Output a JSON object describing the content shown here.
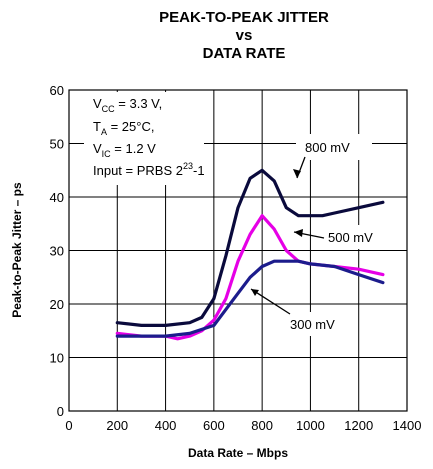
{
  "chart_data": {
    "type": "line",
    "title_lines": [
      "PEAK-TO-PEAK JITTER",
      "vs",
      "DATA RATE"
    ],
    "xlabel": "Data Rate – Mbps",
    "ylabel": "Peak-to-Peak Jitter – ps",
    "xlim": [
      0,
      1400
    ],
    "ylim": [
      0,
      60
    ],
    "xticks": [
      0,
      200,
      400,
      600,
      800,
      1000,
      1200,
      1400
    ],
    "yticks": [
      0,
      10,
      20,
      30,
      40,
      50,
      60
    ],
    "grid": true,
    "conditions": [
      {
        "base": "V",
        "sub": "CC",
        "rest": " = 3.3 V,"
      },
      {
        "base": "T",
        "sub": "A",
        "rest": " = 25°C,"
      },
      {
        "base": "V",
        "sub": "IC",
        "rest": " = 1.2 V"
      },
      {
        "base": "Input = PRBS 2",
        "sup": "23",
        "rest": "-1"
      }
    ],
    "series": [
      {
        "name": "800 mV",
        "color": "#0a0a3c",
        "x": [
          200,
          300,
          400,
          500,
          550,
          600,
          650,
          700,
          750,
          800,
          850,
          900,
          950,
          1000,
          1050,
          1100,
          1200,
          1300
        ],
        "y": [
          16.5,
          16,
          16,
          16.5,
          17.5,
          21,
          29,
          38,
          43.5,
          45,
          43,
          38,
          36.5,
          36.5,
          36.5,
          37,
          38,
          39
        ]
      },
      {
        "name": "500 mV",
        "color": "#e600e6",
        "x": [
          200,
          300,
          400,
          450,
          500,
          550,
          600,
          650,
          700,
          750,
          800,
          850,
          900,
          950,
          1000,
          1100,
          1200,
          1300
        ],
        "y": [
          14.5,
          14,
          14,
          13.5,
          14,
          15,
          17,
          21,
          28,
          33,
          36.5,
          34,
          30,
          28,
          27.5,
          27,
          26.5,
          25.5
        ]
      },
      {
        "name": "300 mV",
        "color": "#1c1c8c",
        "x": [
          200,
          300,
          400,
          500,
          600,
          650,
          700,
          750,
          800,
          850,
          900,
          950,
          1000,
          1100,
          1200,
          1300
        ],
        "y": [
          14,
          14,
          14,
          14.5,
          16,
          19,
          22,
          25,
          27,
          28,
          28,
          28,
          27.5,
          27,
          25.5,
          24
        ]
      }
    ]
  }
}
